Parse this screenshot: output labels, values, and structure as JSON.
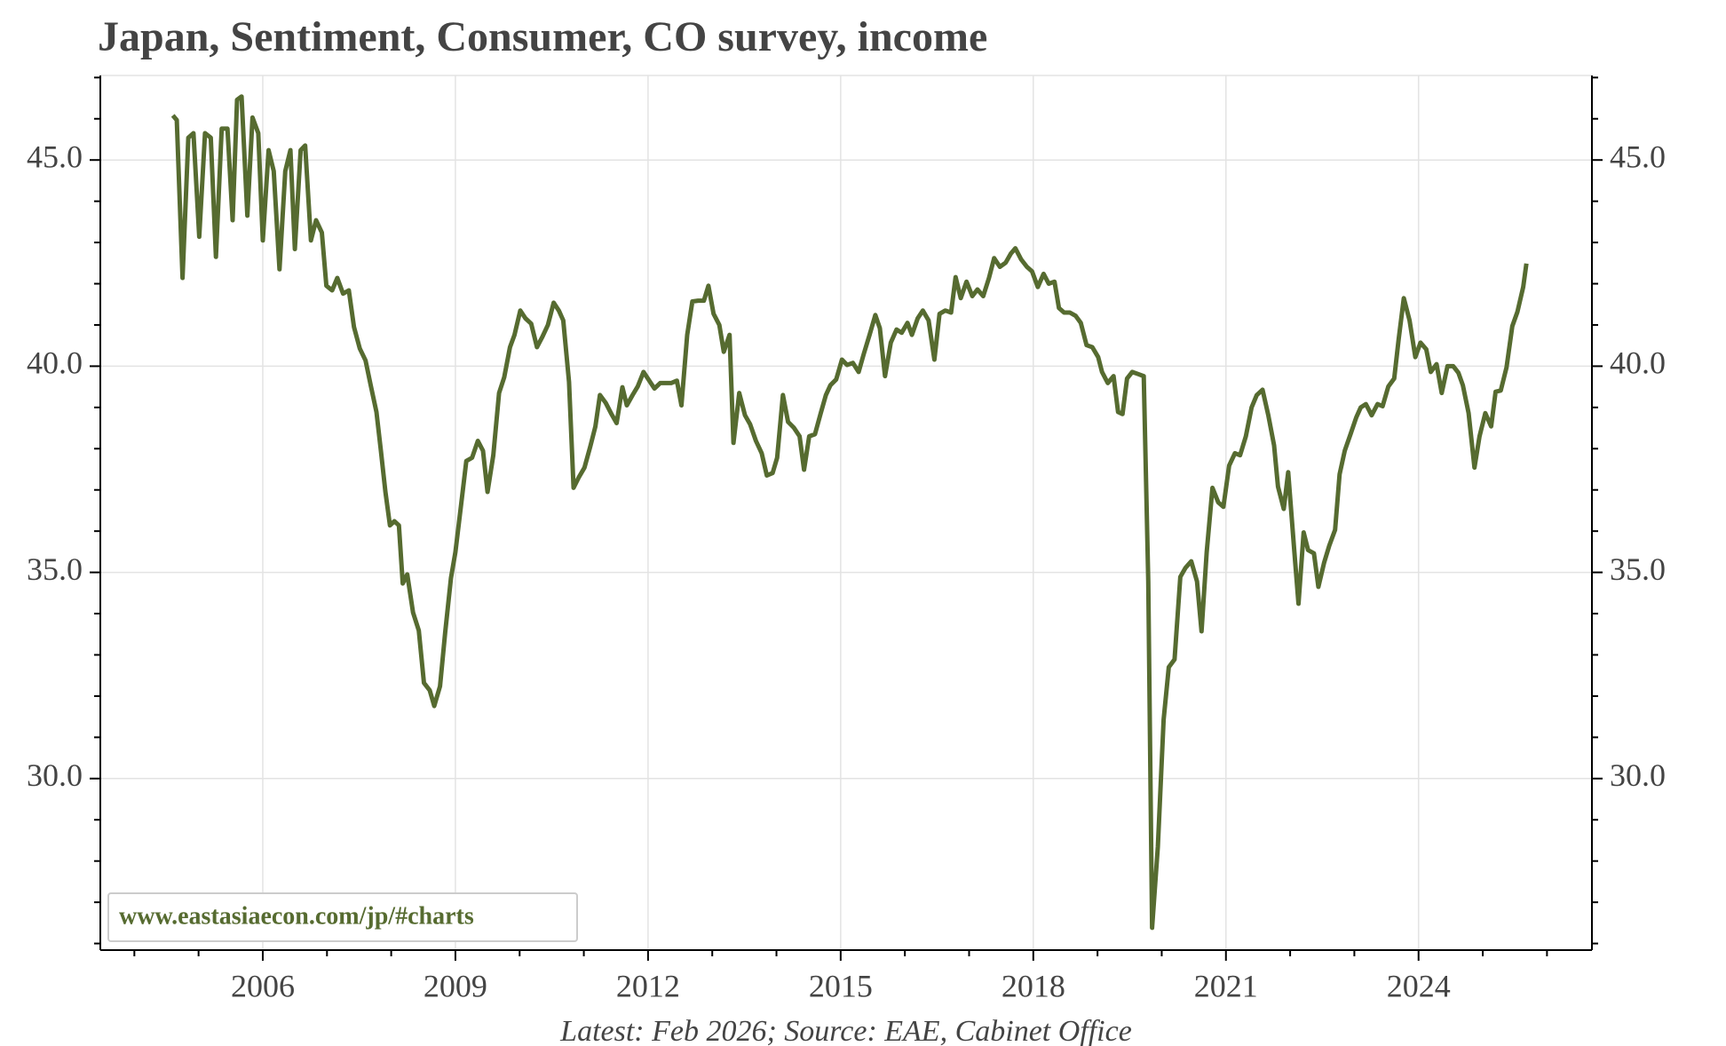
{
  "chart_data": {
    "type": "line",
    "title": "Japan, Sentiment, Consumer, CO survey, income",
    "footnote": "Latest: Feb 2026; Source: EAE, Cabinet Office",
    "watermark": "www.eastasiaecon.com/jp/#charts",
    "color": "#566b30",
    "grid": true,
    "xlim": [
      2003.47,
      2026.7
    ],
    "ylim": [
      25.84,
      47.05
    ],
    "xticks": [
      2006,
      2009,
      2012,
      2015,
      2018,
      2021,
      2024
    ],
    "xticks_minor": [
      2004,
      2005,
      2007,
      2008,
      2010,
      2011,
      2013,
      2014,
      2016,
      2017,
      2019,
      2020,
      2022,
      2023,
      2025,
      2026
    ],
    "yticks": [
      {
        "value": 30,
        "label": "30.0"
      },
      {
        "value": 35,
        "label": "35.0"
      },
      {
        "value": 40,
        "label": "40.0"
      },
      {
        "value": 45,
        "label": "45.0"
      }
    ],
    "yticks_minor": [
      26,
      27,
      28,
      29,
      31,
      32,
      33,
      34,
      36,
      37,
      38,
      39,
      41,
      42,
      43,
      44,
      46,
      47
    ],
    "x": [
      2004.6,
      2004.66,
      2004.75,
      2004.84,
      2004.92,
      2005.01,
      2005.1,
      2005.19,
      2005.27,
      2005.36,
      2005.45,
      2005.53,
      2005.6,
      2005.67,
      2005.76,
      2005.84,
      2005.93,
      2006.0,
      2006.09,
      2006.17,
      2006.26,
      2006.35,
      2006.43,
      2006.5,
      2006.59,
      2006.66,
      2006.75,
      2006.83,
      2006.92,
      2006.99,
      2007.08,
      2007.16,
      2007.25,
      2007.34,
      2007.42,
      2007.51,
      2007.6,
      2007.68,
      2007.77,
      2007.84,
      2007.91,
      2007.98,
      2008.05,
      2008.12,
      2008.18,
      2008.25,
      2008.34,
      2008.43,
      2008.51,
      2008.6,
      2008.67,
      2008.76,
      2008.84,
      2008.93,
      2009.0,
      2009.09,
      2009.17,
      2009.26,
      2009.35,
      2009.43,
      2009.5,
      2009.59,
      2009.68,
      2009.76,
      2009.85,
      2009.92,
      2010.01,
      2010.09,
      2010.18,
      2010.27,
      2010.35,
      2010.44,
      2010.53,
      2010.61,
      2010.68,
      2010.77,
      2010.84,
      2010.92,
      2011.01,
      2011.1,
      2011.18,
      2011.25,
      2011.34,
      2011.43,
      2011.51,
      2011.6,
      2011.67,
      2011.76,
      2011.84,
      2011.93,
      2012.02,
      2012.1,
      2012.19,
      2012.28,
      2012.36,
      2012.45,
      2012.52,
      2012.61,
      2012.69,
      2012.78,
      2012.87,
      2012.94,
      2013.02,
      2013.11,
      2013.18,
      2013.27,
      2013.33,
      2013.42,
      2013.51,
      2013.59,
      2013.68,
      2013.77,
      2013.85,
      2013.94,
      2014.01,
      2014.1,
      2014.18,
      2014.27,
      2014.36,
      2014.43,
      2014.51,
      2014.6,
      2014.69,
      2014.77,
      2014.84,
      2014.93,
      2015.02,
      2015.1,
      2015.19,
      2015.28,
      2015.36,
      2015.45,
      2015.54,
      2015.61,
      2015.69,
      2015.78,
      2015.87,
      2015.95,
      2016.04,
      2016.11,
      2016.2,
      2016.28,
      2016.37,
      2016.46,
      2016.54,
      2016.63,
      2016.72,
      2016.79,
      2016.87,
      2016.96,
      2017.05,
      2017.13,
      2017.22,
      2017.31,
      2017.39,
      2017.48,
      2017.57,
      2017.65,
      2017.72,
      2017.81,
      2017.9,
      2017.98,
      2018.07,
      2018.16,
      2018.24,
      2018.33,
      2018.4,
      2018.48,
      2018.57,
      2018.66,
      2018.74,
      2018.83,
      2018.92,
      2019.01,
      2019.07,
      2019.16,
      2019.25,
      2019.32,
      2019.39,
      2019.46,
      2019.54,
      2019.63,
      2019.72,
      2019.79,
      2019.85,
      2019.94,
      2020.03,
      2020.11,
      2020.2,
      2020.29,
      2020.37,
      2020.46,
      2020.55,
      2020.62,
      2020.7,
      2020.79,
      2020.88,
      2020.96,
      2021.05,
      2021.14,
      2021.22,
      2021.31,
      2021.4,
      2021.48,
      2021.57,
      2021.66,
      2021.75,
      2021.81,
      2021.9,
      2021.97,
      2022.06,
      2022.13,
      2022.21,
      2022.28,
      2022.37,
      2022.44,
      2022.53,
      2022.61,
      2022.7,
      2022.77,
      2022.85,
      2022.94,
      2023.03,
      2023.1,
      2023.18,
      2023.27,
      2023.36,
      2023.44,
      2023.53,
      2023.62,
      2023.69,
      2023.77,
      2023.86,
      2023.95,
      2024.03,
      2024.12,
      2024.19,
      2024.28,
      2024.36,
      2024.45,
      2024.54,
      2024.62,
      2024.69,
      2024.78,
      2024.87,
      2024.95,
      2025.04,
      2025.13,
      2025.2,
      2025.28,
      2025.37,
      2025.46,
      2025.54,
      2025.63,
      2025.68
    ],
    "values": [
      46.08,
      45.97,
      42.14,
      45.54,
      45.65,
      43.14,
      45.65,
      45.54,
      42.65,
      45.76,
      45.76,
      43.54,
      46.46,
      46.54,
      43.65,
      46.03,
      45.65,
      43.05,
      45.24,
      44.73,
      42.35,
      44.73,
      45.24,
      42.84,
      45.24,
      45.35,
      43.05,
      43.54,
      43.24,
      41.95,
      41.84,
      42.14,
      41.76,
      41.84,
      40.95,
      40.43,
      40.14,
      39.54,
      38.89,
      37.95,
      36.95,
      36.14,
      36.24,
      36.14,
      34.73,
      34.95,
      34.03,
      33.59,
      32.32,
      32.14,
      31.76,
      32.24,
      33.54,
      34.86,
      35.49,
      36.65,
      37.7,
      37.78,
      38.19,
      37.95,
      36.95,
      37.84,
      39.35,
      39.73,
      40.46,
      40.76,
      41.35,
      41.16,
      41.03,
      40.46,
      40.7,
      41.0,
      41.54,
      41.35,
      41.11,
      39.62,
      37.05,
      37.3,
      37.54,
      38.05,
      38.54,
      39.3,
      39.11,
      38.84,
      38.62,
      39.49,
      39.05,
      39.3,
      39.51,
      39.86,
      39.65,
      39.46,
      39.59,
      39.59,
      39.59,
      39.65,
      39.05,
      40.76,
      41.57,
      41.59,
      41.59,
      41.95,
      41.27,
      41.0,
      40.35,
      40.76,
      38.14,
      39.35,
      38.81,
      38.59,
      38.19,
      37.89,
      37.35,
      37.41,
      37.78,
      39.3,
      38.65,
      38.51,
      38.3,
      37.49,
      38.3,
      38.35,
      38.86,
      39.3,
      39.54,
      39.68,
      40.16,
      40.03,
      40.08,
      39.86,
      40.3,
      40.76,
      41.24,
      40.92,
      39.76,
      40.57,
      40.89,
      40.81,
      41.05,
      40.76,
      41.16,
      41.35,
      41.11,
      40.16,
      41.27,
      41.35,
      41.3,
      42.16,
      41.65,
      42.05,
      41.7,
      41.86,
      41.7,
      42.14,
      42.62,
      42.41,
      42.51,
      42.73,
      42.86,
      42.59,
      42.41,
      42.3,
      41.92,
      42.24,
      42.0,
      42.05,
      41.41,
      41.3,
      41.3,
      41.22,
      41.05,
      40.51,
      40.46,
      40.22,
      39.86,
      39.59,
      39.76,
      38.89,
      38.84,
      39.7,
      39.86,
      39.81,
      39.76,
      34.78,
      26.38,
      28.35,
      31.43,
      32.7,
      32.89,
      34.89,
      35.11,
      35.27,
      34.78,
      33.57,
      35.49,
      37.05,
      36.7,
      36.59,
      37.59,
      37.89,
      37.84,
      38.3,
      39.0,
      39.3,
      39.43,
      38.81,
      38.08,
      37.08,
      36.54,
      37.43,
      35.62,
      34.24,
      35.97,
      35.54,
      35.46,
      34.65,
      35.24,
      35.65,
      36.03,
      37.38,
      37.95,
      38.35,
      38.76,
      39.0,
      39.08,
      38.81,
      39.08,
      39.03,
      39.51,
      39.7,
      40.65,
      41.65,
      41.11,
      40.22,
      40.57,
      40.41,
      39.86,
      40.05,
      39.35,
      40.0,
      40.0,
      39.84,
      39.54,
      38.86,
      37.54,
      38.3,
      38.86,
      38.54,
      39.38,
      39.41,
      39.97,
      40.97,
      41.32,
      41.92,
      42.49
    ]
  }
}
